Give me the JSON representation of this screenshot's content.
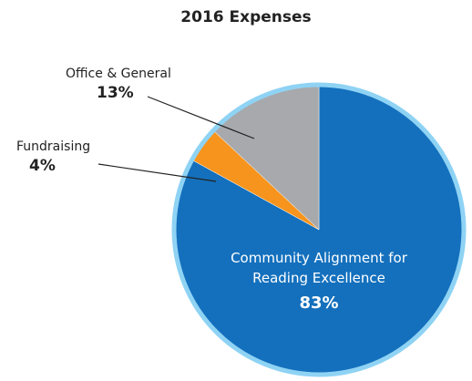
{
  "chart_data": {
    "type": "pie",
    "title": "2016 Expenses",
    "categories": [
      "Community Alignment for Reading Excellence",
      "Fundraising",
      "Office & General"
    ],
    "values": [
      83,
      4,
      13
    ],
    "value_labels": [
      "83%",
      "4%",
      "13%"
    ],
    "colors": [
      "#1470bd",
      "#f7941d",
      "#a7a9ac"
    ]
  }
}
